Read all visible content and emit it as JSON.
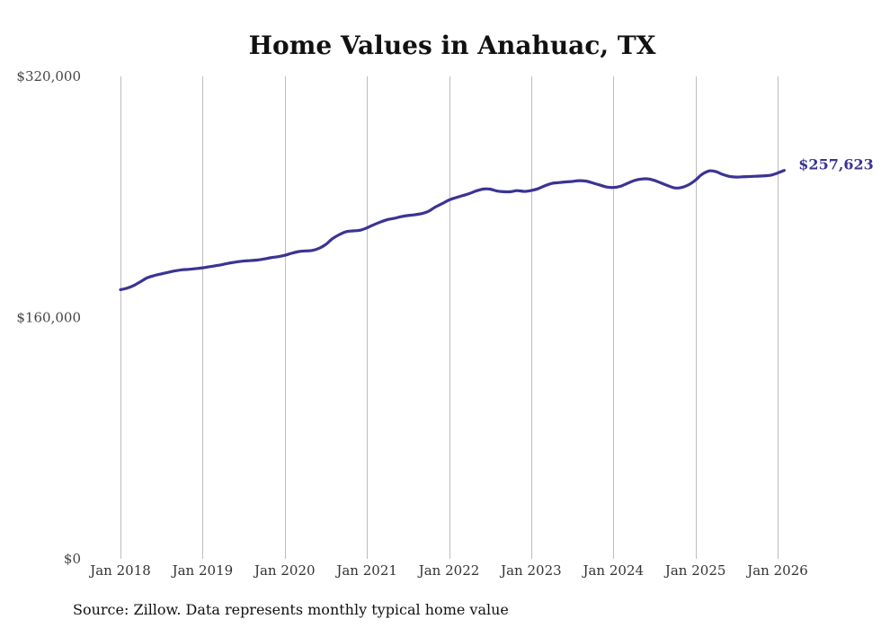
{
  "chart_data": {
    "type": "line",
    "title": "Home Values in Anahuac, TX",
    "xlabel": "",
    "ylabel": "",
    "ylim": [
      0,
      320000
    ],
    "yticks": [
      0,
      160000,
      320000
    ],
    "ytick_labels": [
      "$0",
      "$160,000",
      "$320,000"
    ],
    "xtick_labels": [
      "Jan 2018",
      "Jan 2019",
      "Jan 2020",
      "Jan 2021",
      "Jan 2022",
      "Jan 2023",
      "Jan 2024",
      "Jan 2025",
      "Jan 2026"
    ],
    "xtick_values": [
      2018,
      2019,
      2020,
      2021,
      2022,
      2023,
      2024,
      2025,
      2026
    ],
    "xlim": [
      2018,
      2026
    ],
    "grid": "vertical",
    "series": [
      {
        "name": "Typical home value",
        "color": "#3a3494",
        "x": [
          2018.0,
          2018.08,
          2018.17,
          2018.25,
          2018.33,
          2018.42,
          2018.5,
          2018.58,
          2018.67,
          2018.75,
          2018.83,
          2018.92,
          2019.0,
          2019.08,
          2019.17,
          2019.25,
          2019.33,
          2019.42,
          2019.5,
          2019.58,
          2019.67,
          2019.75,
          2019.83,
          2019.92,
          2020.0,
          2020.08,
          2020.17,
          2020.25,
          2020.33,
          2020.42,
          2020.5,
          2020.58,
          2020.67,
          2020.75,
          2020.83,
          2020.92,
          2021.0,
          2021.08,
          2021.17,
          2021.25,
          2021.33,
          2021.42,
          2021.5,
          2021.58,
          2021.67,
          2021.75,
          2021.83,
          2021.92,
          2022.0,
          2022.08,
          2022.17,
          2022.25,
          2022.33,
          2022.42,
          2022.5,
          2022.58,
          2022.67,
          2022.75,
          2022.83,
          2022.92,
          2023.0,
          2023.08,
          2023.17,
          2023.25,
          2023.33,
          2023.42,
          2023.5,
          2023.58,
          2023.67,
          2023.75,
          2023.83,
          2023.92,
          2024.0,
          2024.08,
          2024.17,
          2024.25,
          2024.33,
          2024.42,
          2024.5,
          2024.58,
          2024.67,
          2024.75,
          2024.83,
          2024.92,
          2025.0,
          2025.08,
          2025.17,
          2025.25,
          2025.33,
          2025.42,
          2025.5,
          2025.58,
          2025.67,
          2025.75,
          2025.83,
          2025.92,
          2026.0,
          2026.08
        ],
        "values": [
          178500,
          179500,
          181500,
          184000,
          186500,
          188000,
          189000,
          190000,
          191000,
          191700,
          192000,
          192500,
          193000,
          193700,
          194500,
          195300,
          196200,
          197000,
          197500,
          197800,
          198200,
          198900,
          199700,
          200400,
          201300,
          202600,
          203800,
          204200,
          204500,
          206000,
          208500,
          212300,
          215200,
          217000,
          217500,
          218000,
          219500,
          221500,
          223500,
          225000,
          225800,
          227000,
          227700,
          228200,
          229000,
          230500,
          233200,
          235700,
          238000,
          239500,
          241000,
          242300,
          244000,
          245300,
          245200,
          244000,
          243500,
          243500,
          244200,
          243700,
          244300,
          245400,
          247500,
          249000,
          249500,
          250000,
          250300,
          250800,
          250500,
          249300,
          248000,
          246600,
          246300,
          247000,
          249000,
          250800,
          251800,
          252000,
          251000,
          249300,
          247400,
          246000,
          246300,
          248200,
          251200,
          255000,
          257300,
          256800,
          255000,
          253600,
          253200,
          253400,
          253600,
          253800,
          254000,
          254500,
          255900,
          257623
        ]
      }
    ],
    "end_label": "$257,623"
  },
  "footer": {
    "source": "Source: Zillow. Data represents monthly typical home value"
  }
}
